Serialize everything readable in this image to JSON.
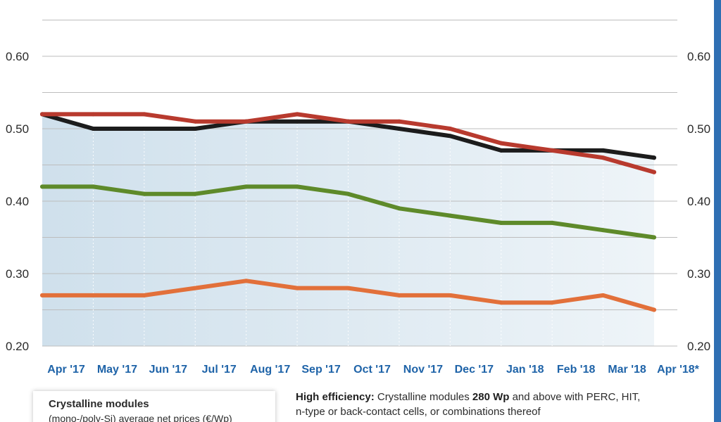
{
  "chart_data": {
    "type": "line",
    "categories": [
      "Apr '17",
      "May '17",
      "Jun '17",
      "Jul '17",
      "Aug '17",
      "Sep '17",
      "Oct '17",
      "Nov '17",
      "Dec '17",
      "Jan '18",
      "Feb '18",
      "Mar '18",
      "Apr '18*"
    ],
    "yticks": [
      "0.20",
      "0.30",
      "0.40",
      "0.50",
      "0.60"
    ],
    "ylim": [
      0.2,
      0.65
    ],
    "grid": true,
    "series": [
      {
        "color": "#1c1c1c",
        "values": [
          0.52,
          0.5,
          0.5,
          0.5,
          0.51,
          0.51,
          0.51,
          0.5,
          0.49,
          0.47,
          0.47,
          0.47,
          0.46
        ]
      },
      {
        "color": "#b83a2e",
        "values": [
          0.52,
          0.52,
          0.52,
          0.51,
          0.51,
          0.52,
          0.51,
          0.51,
          0.5,
          0.48,
          0.47,
          0.46,
          0.44
        ]
      },
      {
        "color": "#5e8a2a",
        "values": [
          0.42,
          0.42,
          0.41,
          0.41,
          0.42,
          0.42,
          0.41,
          0.39,
          0.38,
          0.37,
          0.37,
          0.36,
          0.35
        ]
      },
      {
        "color": "#e2703a",
        "values": [
          0.27,
          0.27,
          0.27,
          0.28,
          0.29,
          0.28,
          0.28,
          0.27,
          0.27,
          0.26,
          0.26,
          0.27,
          0.25
        ]
      }
    ]
  },
  "footer": {
    "note_bold": "High efficiency:",
    "note_mid": " Crystalline modules ",
    "note_bold2": "280 Wp",
    "note_rest": " and above with PERC, HIT,",
    "note_line2": "n-type or back-contact cells, or combinations thereof"
  },
  "legend": {
    "title": "Crystalline modules",
    "subtitle": "(mono-/poly-Si) average net prices (€/Wp)"
  },
  "colors": {
    "axis_label": "#1e63a8",
    "grid": "#bdbdbd",
    "area_top": "#cfe0ec",
    "area_bottom": "#e9f1f6",
    "frame_accent": "#2f6fb3"
  }
}
